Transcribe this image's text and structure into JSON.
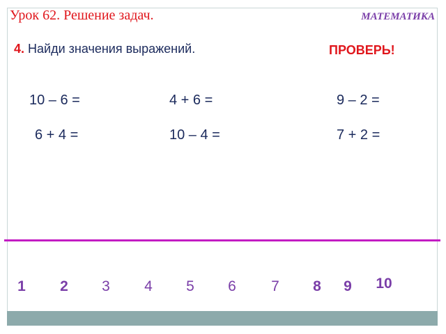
{
  "header": {
    "title": "Урок 62. Решение задач.",
    "subject": "МАТЕМАТИКА"
  },
  "task": {
    "number": "4.",
    "text": " Найди значения выражений."
  },
  "check_button": {
    "label": "ПРОВЕРЬ!"
  },
  "expressions": [
    "10 – 6 =",
    "4 + 6 =",
    "9 – 2 =",
    "6 + 4 =",
    "10 – 4 =",
    "7 + 2 ="
  ],
  "number_line": [
    "1",
    "2",
    "3",
    "4",
    "5",
    "6",
    "7",
    "8",
    "9",
    "10"
  ],
  "colors": {
    "title": "#e0161c",
    "subject": "#7a3ea8",
    "line": "#c31cc3",
    "footer": "#8daaab"
  }
}
